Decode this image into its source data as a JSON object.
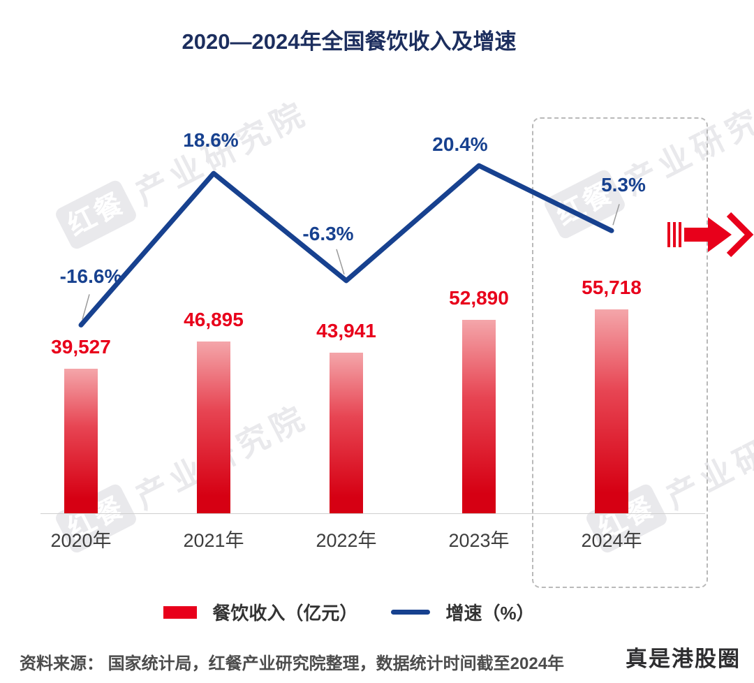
{
  "title": "2020—2024年全国餐饮收入及增速",
  "chart_data": {
    "type": "bar",
    "subtype": "bar+line combo",
    "categories": [
      "2020年",
      "2021年",
      "2022年",
      "2023年",
      "2024年"
    ],
    "series": [
      {
        "name": "餐饮收入（亿元）",
        "type": "bar",
        "values": [
          39527,
          46895,
          43941,
          52890,
          55718
        ],
        "labels": [
          "39,527",
          "46,895",
          "43,941",
          "52,890",
          "55,718"
        ],
        "color": "#e8001b"
      },
      {
        "name": "增速（%）",
        "type": "line",
        "values": [
          -16.6,
          18.6,
          -6.3,
          20.4,
          5.3
        ],
        "labels": [
          "-16.6%",
          "18.6%",
          "-6.3%",
          "20.4%",
          "5.3%"
        ],
        "color": "#17418f"
      }
    ],
    "highlight_category": "2024年",
    "legend_position": "bottom",
    "grid": false
  },
  "legend": {
    "bar_label": "餐饮收入（亿元）",
    "line_label": "增速（%）"
  },
  "source": "资料来源： 国家统计局，红餐产业研究院整理，数据统计时间截至2024年",
  "overlay_watermark": "真是港股圈",
  "watermark": {
    "badge": "红餐",
    "text": "产业研究院"
  },
  "colors": {
    "bar_top": "#f4a6aa",
    "bar_bottom": "#d60013",
    "line": "#17418f",
    "value_label": "#e8001b",
    "growth_label": "#17418f",
    "title": "#1c2e5e",
    "arrow": "#e8001b"
  }
}
